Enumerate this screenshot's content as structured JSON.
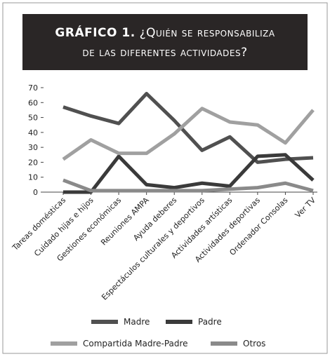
{
  "chart_data": {
    "type": "line",
    "title": "GRÁFICO 1.",
    "subtitle": "¿Quién se responsabiliza de las diferentes actividades?",
    "categories": [
      "Tareas domésticas",
      "Cuidado hijas e hijos",
      "Gestiones económicas",
      "Reuniones AMPA",
      "Ayuda deberes",
      "Espectáculos culturales y deportivos",
      "Actividades  artísticas",
      "Actividades deportivas",
      "Ordenador Consolas",
      "Ver TV"
    ],
    "series": [
      {
        "name": "Madre",
        "color": "#505050",
        "values": [
          57,
          51,
          46,
          66,
          48,
          28,
          37,
          20,
          22,
          23
        ]
      },
      {
        "name": "Padre",
        "color": "#3a3a3a",
        "values": [
          0,
          0,
          24,
          5,
          3,
          6,
          4,
          24,
          25,
          8
        ]
      },
      {
        "name": "Compartida Madre-Padre",
        "color": "#a0a0a0",
        "values": [
          22,
          35,
          26,
          26,
          39,
          56,
          47,
          45,
          33,
          55
        ]
      },
      {
        "name": "Otros",
        "color": "#8a8a8a",
        "values": [
          8,
          1,
          1,
          1,
          1,
          1,
          2,
          3,
          6,
          1
        ]
      }
    ],
    "ylim": [
      0,
      70
    ],
    "yticks": [
      0,
      10,
      20,
      30,
      40,
      50,
      60,
      70
    ],
    "grid": false
  }
}
